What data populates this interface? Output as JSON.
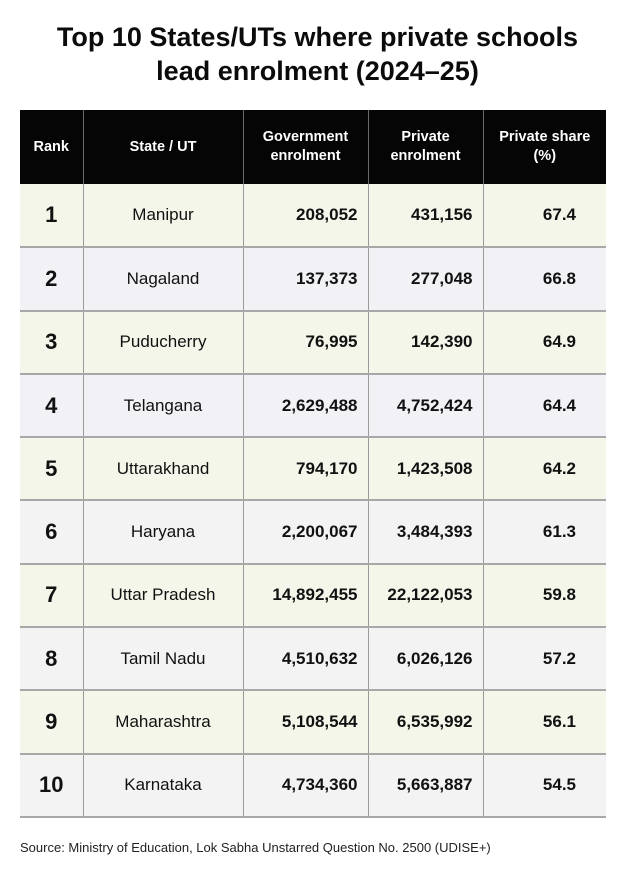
{
  "title": {
    "line1": "Top 10 States/UTs where private schools",
    "line2": "lead enrolment (2024–25)"
  },
  "table": {
    "headers": {
      "rank": "Rank",
      "state": "State / UT",
      "gov_line1": "Government",
      "gov_line2": "enrolment",
      "priv_line1": "Private",
      "priv_line2": "enrolment",
      "share_line1": "Private share",
      "share_line2": "(%)"
    },
    "rows": [
      {
        "rank": "1",
        "state": "Manipur",
        "gov": "208,052",
        "priv": "431,156",
        "share": "67.4"
      },
      {
        "rank": "2",
        "state": "Nagaland",
        "gov": "137,373",
        "priv": "277,048",
        "share": "66.8"
      },
      {
        "rank": "3",
        "state": "Puducherry",
        "gov": "76,995",
        "priv": "142,390",
        "share": "64.9"
      },
      {
        "rank": "4",
        "state": "Telangana",
        "gov": "2,629,488",
        "priv": "4,752,424",
        "share": "64.4"
      },
      {
        "rank": "5",
        "state": "Uttarakhand",
        "gov": "794,170",
        "priv": "1,423,508",
        "share": "64.2"
      },
      {
        "rank": "6",
        "state": "Haryana",
        "gov": "2,200,067",
        "priv": "3,484,393",
        "share": "61.3"
      },
      {
        "rank": "7",
        "state": "Uttar Pradesh",
        "gov": "14,892,455",
        "priv": "22,122,053",
        "share": "59.8"
      },
      {
        "rank": "8",
        "state": "Tamil Nadu",
        "gov": "4,510,632",
        "priv": "6,026,126",
        "share": "57.2"
      },
      {
        "rank": "9",
        "state": "Maharashtra",
        "gov": "5,108,544",
        "priv": "6,535,992",
        "share": "56.1"
      },
      {
        "rank": "10",
        "state": "Karnataka",
        "gov": "4,734,360",
        "priv": "5,663,887",
        "share": "54.5"
      }
    ]
  },
  "source": "Source: Ministry of Education, Lok Sabha Unstarred Question No. 2500 (UDISE+)",
  "colors": {
    "header_bg": "#050505",
    "row_odd_bg": "#f5f6ea",
    "row_even_bg": "#f1f1f6",
    "row_grey_bg": "#f3f3f3"
  }
}
